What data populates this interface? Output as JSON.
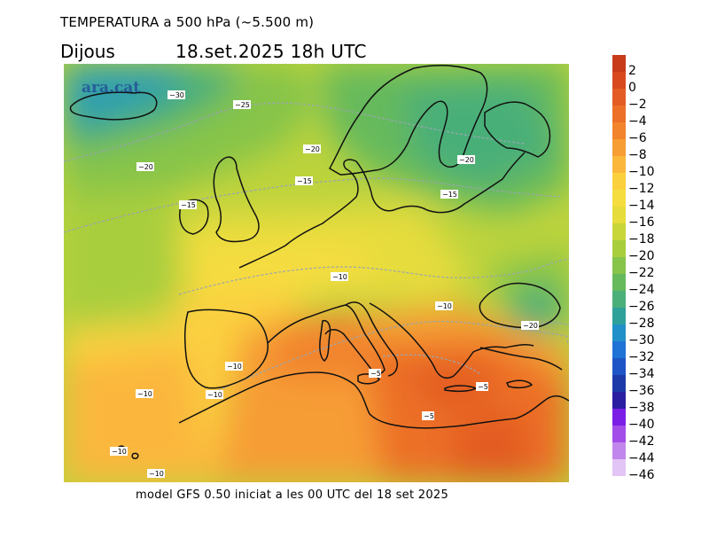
{
  "header": {
    "title": "TEMPERATURA a 500 hPa (~5.500 m)",
    "day": "Dijous",
    "datetime": "18.set.2025 18h UTC"
  },
  "watermark": "ara.cat",
  "footer": "model GFS 0.50 iniciat a les 00 UTC del 18 set 2025",
  "legend": {
    "labels": [
      "2",
      "0",
      "−2",
      "−4",
      "−6",
      "−8",
      "−10",
      "−12",
      "−14",
      "−16",
      "−18",
      "−20",
      "−22",
      "−24",
      "−26",
      "−28",
      "−30",
      "−32",
      "−34",
      "−36",
      "−38",
      "−40",
      "−42",
      "−44",
      "−46"
    ],
    "colors": [
      "#c83c1a",
      "#d84a1e",
      "#e35c23",
      "#ec7028",
      "#f2842e",
      "#f69d34",
      "#fbb73c",
      "#fbd03f",
      "#f5dd3f",
      "#e6dc3c",
      "#c9d63a",
      "#a8ce3e",
      "#86c44a",
      "#66ba5c",
      "#4aaf79",
      "#2fa19b",
      "#2190c8",
      "#1f72d6",
      "#1e55c6",
      "#1c3aa8",
      "#2a1fa0",
      "#7c1fe6",
      "#a34ee8",
      "#c287ec",
      "#e2c5f5"
    ]
  },
  "contour_labels": [
    {
      "text": "−30"
    },
    {
      "text": "−25"
    },
    {
      "text": "−20"
    },
    {
      "text": "−20"
    },
    {
      "text": "−20"
    },
    {
      "text": "−15"
    },
    {
      "text": "−15"
    },
    {
      "text": "−15"
    },
    {
      "text": "−10"
    },
    {
      "text": "−10"
    },
    {
      "text": "−10"
    },
    {
      "text": "−10"
    },
    {
      "text": "−10"
    },
    {
      "text": "−10"
    },
    {
      "text": "−10"
    },
    {
      "text": "−20"
    },
    {
      "text": "−5"
    },
    {
      "text": "−5"
    },
    {
      "text": "−5"
    }
  ]
}
